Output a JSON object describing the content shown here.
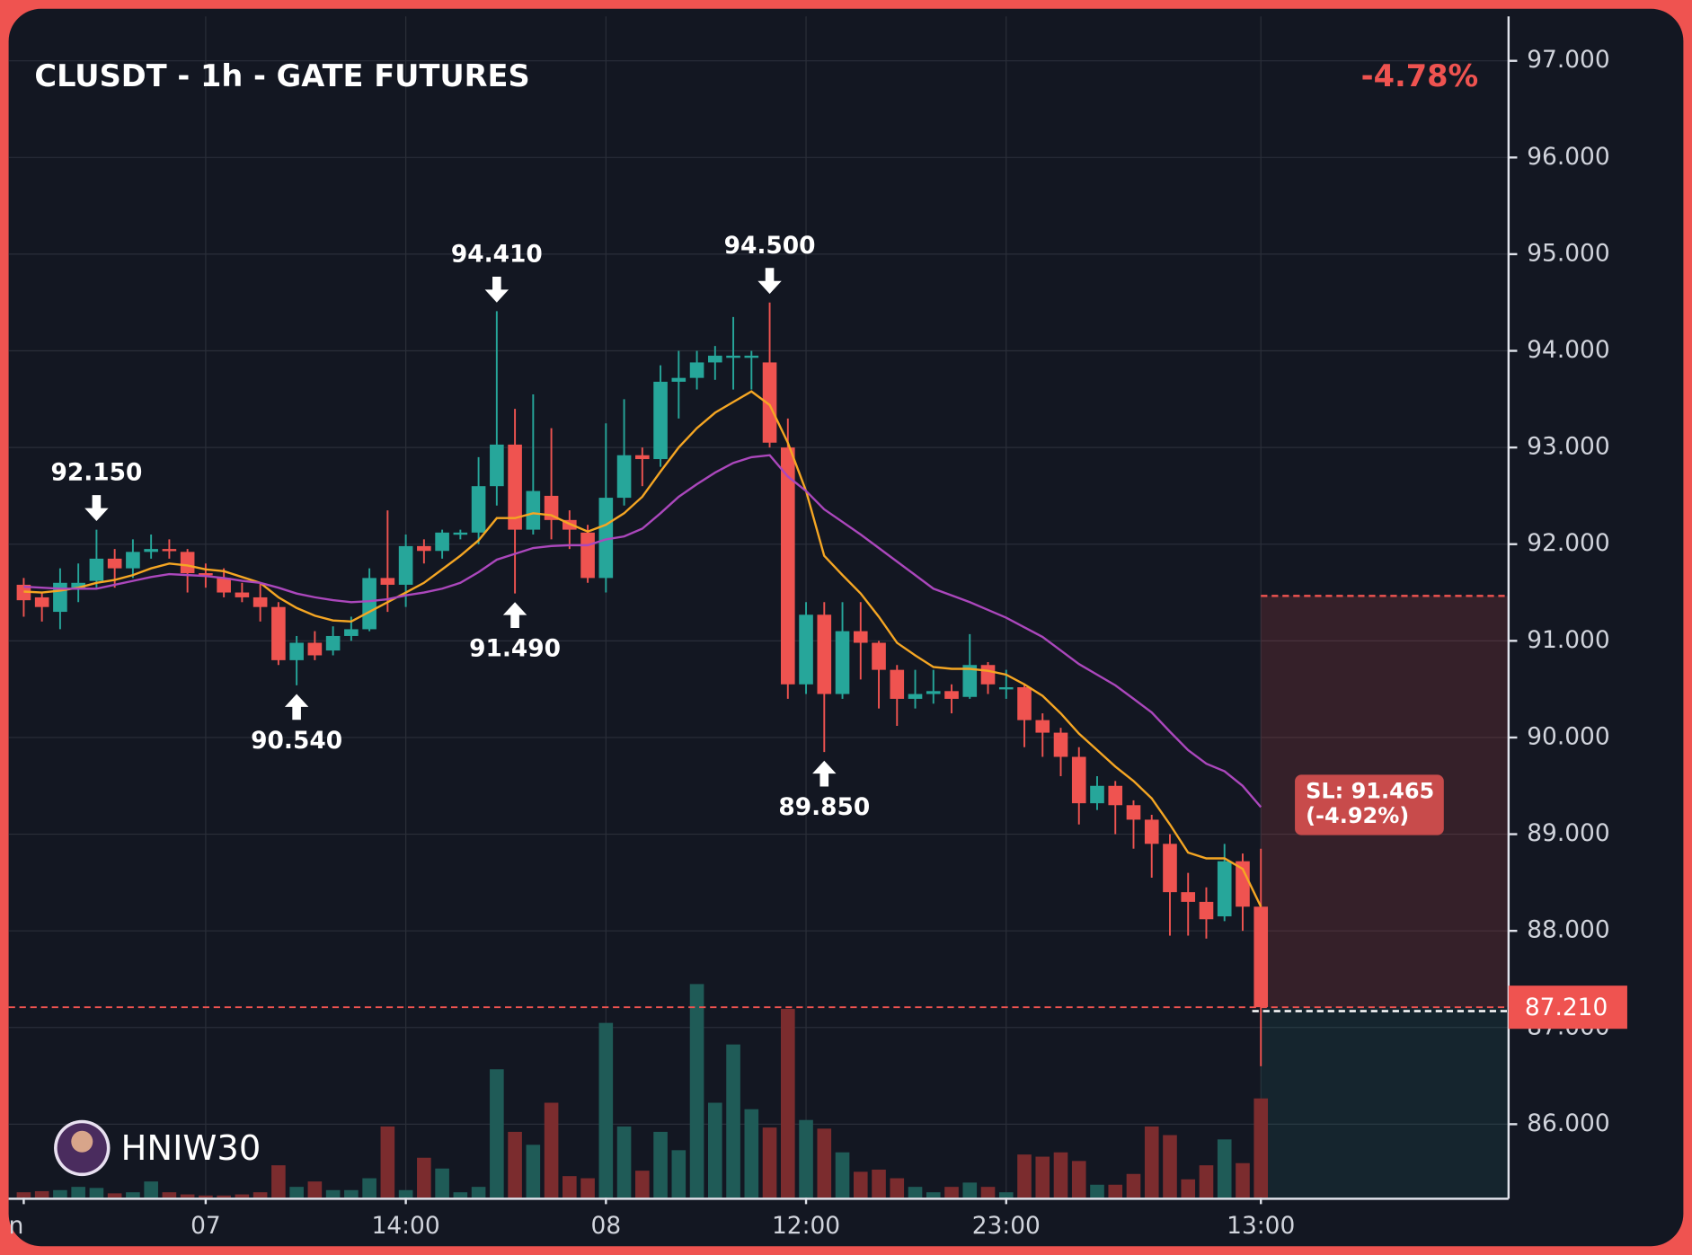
{
  "chart_data": {
    "type": "candlestick",
    "title": "CLUSDT - 1h - GATE FUTURES",
    "change": "-4.78%",
    "watermark": "HNIW30",
    "categories": [
      "n",
      null,
      null,
      null,
      null,
      null,
      null,
      null,
      null,
      null,
      "07",
      null,
      null,
      null,
      null,
      null,
      null,
      null,
      null,
      null,
      null,
      "14:00",
      null,
      null,
      null,
      null,
      null,
      null,
      null,
      null,
      null,
      null,
      "08",
      null,
      null,
      null,
      null,
      null,
      null,
      null,
      null,
      null,
      null,
      "12:00",
      null,
      null,
      null,
      null,
      null,
      null,
      null,
      null,
      null,
      null,
      "23:00",
      null,
      null,
      null,
      null,
      null,
      null,
      null,
      null,
      null,
      null,
      null,
      null,
      null,
      "13:00"
    ],
    "open": [
      91.58,
      91.45,
      91.3,
      91.55,
      91.62,
      91.85,
      91.75,
      91.92,
      91.95,
      91.92,
      91.7,
      91.65,
      91.5,
      91.45,
      91.35,
      90.8,
      90.98,
      90.9,
      91.05,
      91.12,
      91.65,
      91.58,
      91.98,
      91.93,
      92.1,
      92.12,
      92.6,
      93.03,
      92.15,
      92.5,
      92.25,
      92.12,
      91.65,
      92.48,
      92.92,
      92.88,
      93.68,
      93.72,
      93.88,
      93.93,
      93.93,
      93.88,
      93.0,
      90.55,
      91.27,
      90.45,
      91.1,
      90.98,
      90.7,
      90.4,
      90.45,
      90.48,
      90.42,
      90.75,
      90.5,
      90.52,
      90.18,
      90.05,
      89.8,
      89.32,
      89.5,
      89.3,
      89.15,
      88.9,
      88.4,
      88.3,
      88.15,
      88.72,
      88.25
    ],
    "high": [
      91.65,
      91.5,
      91.75,
      91.8,
      92.15,
      91.95,
      92.05,
      92.1,
      92.05,
      91.95,
      91.8,
      91.75,
      91.6,
      91.6,
      91.4,
      91.05,
      91.1,
      91.15,
      91.25,
      91.75,
      92.35,
      92.1,
      92.05,
      92.15,
      92.15,
      92.9,
      94.41,
      93.4,
      93.55,
      93.2,
      92.35,
      92.2,
      93.25,
      93.5,
      93.0,
      93.85,
      94.0,
      94.0,
      94.05,
      94.35,
      94.0,
      94.5,
      93.3,
      91.4,
      91.4,
      91.4,
      91.4,
      91.0,
      90.75,
      90.7,
      90.7,
      90.55,
      91.07,
      90.78,
      90.7,
      90.55,
      90.25,
      90.1,
      89.9,
      89.6,
      89.55,
      89.35,
      89.2,
      89.0,
      88.6,
      88.45,
      88.9,
      88.8,
      88.85
    ],
    "high_value_labels": [
      null,
      null,
      null,
      null,
      "92.150",
      null,
      null,
      null,
      null,
      null,
      null,
      null,
      null,
      null,
      null,
      null,
      null,
      null,
      null,
      null,
      null,
      null,
      null,
      null,
      null,
      null,
      "94.410",
      null,
      null,
      null,
      null,
      null,
      null,
      null,
      null,
      null,
      null,
      null,
      null,
      null,
      null,
      "94.500",
      null,
      null,
      null,
      null,
      null,
      null,
      null,
      null,
      null,
      null,
      null,
      null,
      null,
      null,
      null,
      null,
      null,
      null,
      null,
      null,
      null,
      null,
      null,
      null,
      null,
      null,
      null
    ],
    "low": [
      91.25,
      91.2,
      91.12,
      91.4,
      91.55,
      91.55,
      91.65,
      91.85,
      91.85,
      91.5,
      91.55,
      91.45,
      91.4,
      91.2,
      90.75,
      90.54,
      90.8,
      90.85,
      91.0,
      91.1,
      91.3,
      91.35,
      91.8,
      91.85,
      92.05,
      92.0,
      92.4,
      91.49,
      92.1,
      92.05,
      91.95,
      91.6,
      91.5,
      92.4,
      92.6,
      92.8,
      93.3,
      93.6,
      93.7,
      93.6,
      93.6,
      93.0,
      90.4,
      90.45,
      89.85,
      90.4,
      90.6,
      90.3,
      90.12,
      90.3,
      90.35,
      90.25,
      90.4,
      90.45,
      90.4,
      89.9,
      89.8,
      89.6,
      89.1,
      89.25,
      89.0,
      88.85,
      88.55,
      87.95,
      87.95,
      87.92,
      88.1,
      88.0,
      86.6
    ],
    "low_value_labels": [
      null,
      null,
      null,
      null,
      null,
      null,
      null,
      null,
      null,
      null,
      null,
      null,
      null,
      null,
      null,
      "90.540",
      null,
      null,
      null,
      null,
      null,
      null,
      null,
      null,
      null,
      null,
      null,
      "91.490",
      null,
      null,
      null,
      null,
      null,
      null,
      null,
      null,
      null,
      null,
      null,
      null,
      null,
      null,
      null,
      null,
      "89.850",
      null,
      null,
      null,
      null,
      null,
      null,
      null,
      null,
      null,
      null,
      null,
      null,
      null,
      null,
      null,
      null,
      null,
      null,
      null,
      null,
      null,
      null,
      null,
      null
    ],
    "close": [
      91.42,
      91.35,
      91.6,
      91.6,
      91.85,
      91.75,
      91.92,
      91.95,
      91.93,
      91.7,
      91.68,
      91.5,
      91.45,
      91.35,
      90.8,
      90.98,
      90.85,
      91.05,
      91.12,
      91.65,
      91.58,
      91.98,
      91.93,
      92.12,
      92.12,
      92.6,
      93.03,
      92.15,
      92.55,
      92.25,
      92.15,
      91.65,
      92.48,
      92.92,
      92.88,
      93.68,
      93.72,
      93.88,
      93.95,
      93.95,
      93.95,
      93.05,
      90.55,
      91.27,
      90.45,
      91.1,
      90.98,
      90.7,
      90.4,
      90.45,
      90.48,
      90.4,
      90.75,
      90.55,
      90.52,
      90.18,
      90.05,
      89.8,
      89.32,
      89.5,
      89.3,
      89.15,
      88.9,
      88.4,
      88.3,
      88.12,
      88.72,
      88.25,
      87.21
    ],
    "volume": [
      5,
      6,
      7,
      10,
      9,
      4,
      5,
      15,
      5,
      3,
      2,
      2,
      3,
      5,
      30,
      10,
      15,
      7,
      7,
      18,
      66,
      7,
      37,
      27,
      5,
      10,
      119,
      61,
      49,
      88,
      20,
      18,
      162,
      66,
      25,
      61,
      44,
      198,
      88,
      142,
      82,
      65,
      175,
      72,
      64,
      42,
      24,
      26,
      18,
      10,
      5,
      10,
      14,
      10,
      5,
      40,
      38,
      42,
      34,
      12,
      12,
      22,
      66,
      58,
      17,
      30,
      54,
      32,
      92
    ],
    "up_color": "#26a69a",
    "down_color": "#ef5350",
    "up_volume_color": "#1f5b57",
    "down_volume_color": "#7b2c2e",
    "moving_averages": [
      {
        "color": "#f5a623",
        "values": [
          91.51,
          91.5,
          91.52,
          91.55,
          91.6,
          91.63,
          91.68,
          91.75,
          91.8,
          91.78,
          91.74,
          91.72,
          91.66,
          91.6,
          91.45,
          91.34,
          91.26,
          91.21,
          91.2,
          91.3,
          91.4,
          91.5,
          91.6,
          91.74,
          91.88,
          92.04,
          92.27,
          92.27,
          92.32,
          92.3,
          92.21,
          92.13,
          92.2,
          92.32,
          92.49,
          92.75,
          93.0,
          93.2,
          93.36,
          93.47,
          93.58,
          93.44,
          93.05,
          92.55,
          91.88,
          91.68,
          91.49,
          91.25,
          90.98,
          90.85,
          90.73,
          90.71,
          90.71,
          90.69,
          90.65,
          90.55,
          90.43,
          90.25,
          90.04,
          89.87,
          89.7,
          89.55,
          89.37,
          89.1,
          88.81,
          88.75,
          88.75,
          88.64,
          88.25
        ]
      },
      {
        "color": "#ab47bc",
        "values": [
          91.56,
          91.55,
          91.54,
          91.54,
          91.54,
          91.58,
          91.62,
          91.66,
          91.69,
          91.68,
          91.67,
          91.65,
          91.62,
          91.6,
          91.55,
          91.49,
          91.45,
          91.42,
          91.4,
          91.41,
          91.43,
          91.47,
          91.5,
          91.54,
          91.6,
          91.71,
          91.84,
          91.9,
          91.96,
          91.98,
          91.99,
          91.99,
          92.05,
          92.08,
          92.16,
          92.32,
          92.49,
          92.62,
          92.74,
          92.84,
          92.9,
          92.92,
          92.7,
          92.55,
          92.36,
          92.23,
          92.1,
          91.96,
          91.82,
          91.68,
          91.54,
          91.47,
          91.4,
          91.32,
          91.24,
          91.14,
          91.04,
          90.9,
          90.76,
          90.65,
          90.54,
          90.4,
          90.26,
          90.06,
          89.87,
          89.73,
          89.65,
          89.5,
          89.28
        ]
      }
    ],
    "last_price": {
      "value": 87.21,
      "label": "87.210"
    },
    "entry": 87.17,
    "stop_loss": {
      "value": 91.465,
      "label": "SL: 91.465",
      "change_label": "(-4.92%)"
    },
    "ylim": [
      85.24,
      97.46
    ],
    "yticks": [
      {
        "value": 86,
        "label": "86.000"
      },
      {
        "value": 87,
        "label": "87.000"
      },
      {
        "value": 88,
        "label": "88.000"
      },
      {
        "value": 89,
        "label": "89.000"
      },
      {
        "value": 90,
        "label": "90.000"
      },
      {
        "value": 91,
        "label": "91.000"
      },
      {
        "value": 92,
        "label": "92.000"
      },
      {
        "value": 93,
        "label": "93.000"
      },
      {
        "value": 94,
        "label": "94.000"
      },
      {
        "value": 95,
        "label": "95.000"
      },
      {
        "value": 96,
        "label": "96.000"
      },
      {
        "value": 97,
        "label": "97.000"
      }
    ],
    "grid": true
  }
}
